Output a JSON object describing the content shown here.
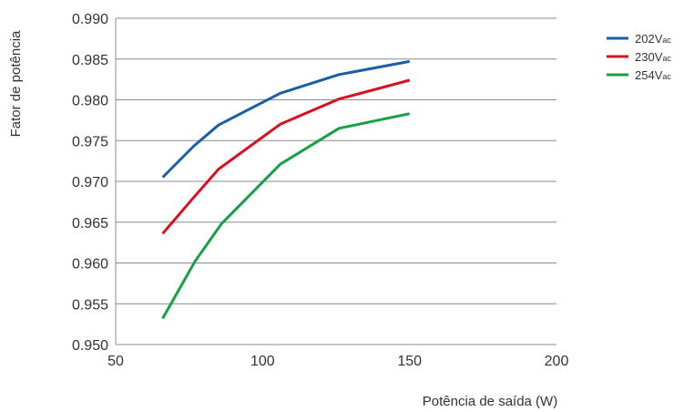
{
  "chart_data": {
    "type": "line",
    "title": "",
    "xlabel": "Potência de saída (W)",
    "ylabel": "Fator de potência",
    "xlim": [
      50,
      200
    ],
    "ylim": [
      0.95,
      0.99
    ],
    "x_ticks": [
      "50",
      "100",
      "150",
      "200"
    ],
    "y_ticks": [
      "0.950",
      "0.955",
      "0.960",
      "0.965",
      "0.970",
      "0.975",
      "0.980",
      "0.985",
      "0.990"
    ],
    "grid": "horizontal",
    "legend_position": "top-right",
    "series": [
      {
        "name": "202Vac",
        "name_main": "202V",
        "name_sub": "ac",
        "color": "#1a5ea8",
        "points": [
          [
            66,
            0.9705
          ],
          [
            76.5,
            0.9743
          ],
          [
            85,
            0.9769
          ],
          [
            106,
            0.9808
          ],
          [
            126,
            0.9831
          ],
          [
            150,
            0.9847
          ]
        ]
      },
      {
        "name": "230Vac",
        "name_main": "230V",
        "name_sub": "ac",
        "color": "#d8101e",
        "points": [
          [
            66,
            0.9636
          ],
          [
            76,
            0.9678
          ],
          [
            85,
            0.9715
          ],
          [
            106,
            0.977
          ],
          [
            126,
            0.9801
          ],
          [
            150,
            0.9824
          ]
        ]
      },
      {
        "name": "254Vac",
        "name_main": "254V",
        "name_sub": "ac",
        "color": "#18a044",
        "points": [
          [
            66,
            0.9532
          ],
          [
            77,
            0.9602
          ],
          [
            86,
            0.9648
          ],
          [
            106,
            0.9721
          ],
          [
            126,
            0.9765
          ],
          [
            150,
            0.9783
          ]
        ]
      }
    ]
  }
}
